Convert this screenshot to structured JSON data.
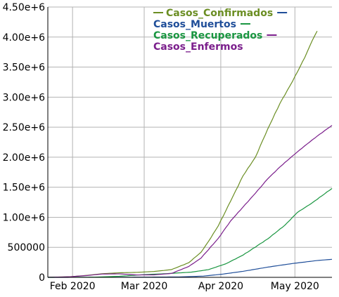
{
  "chart_data": {
    "type": "line",
    "title": "",
    "xlabel": "",
    "ylabel": "",
    "xlim": [
      "2020-01-22",
      "2020-05-16"
    ],
    "ylim": [
      0,
      4500000
    ],
    "x_ticks": [
      {
        "date": "2020-02-01",
        "label": "Feb 2020"
      },
      {
        "date": "2020-03-01",
        "label": "Mar 2020"
      },
      {
        "date": "2020-04-01",
        "label": "Apr 2020"
      },
      {
        "date": "2020-05-01",
        "label": "May 2020"
      }
    ],
    "y_ticks": [
      {
        "value": 0,
        "label": "0"
      },
      {
        "value": 500000,
        "label": "500000"
      },
      {
        "value": 1000000,
        "label": "1.00e+6"
      },
      {
        "value": 1500000,
        "label": "1.50e+6"
      },
      {
        "value": 2000000,
        "label": "2.00e+6"
      },
      {
        "value": 2500000,
        "label": "2.50e+6"
      },
      {
        "value": 3000000,
        "label": "3.00e+6"
      },
      {
        "value": 3500000,
        "label": "3.50e+6"
      },
      {
        "value": 4000000,
        "label": "4.00e+6"
      },
      {
        "value": 4500000,
        "label": "4.50e+6"
      }
    ],
    "grid": true,
    "legend_position": "top-right",
    "series": [
      {
        "name": "Casos_Confirmados",
        "color": "#6b8e23",
        "points": [
          [
            "2020-01-22",
            550
          ],
          [
            "2020-01-31",
            9900
          ],
          [
            "2020-02-07",
            34400
          ],
          [
            "2020-02-13",
            60300
          ],
          [
            "2020-02-20",
            76200
          ],
          [
            "2020-02-27",
            82700
          ],
          [
            "2020-03-05",
            97900
          ],
          [
            "2020-03-12",
            128300
          ],
          [
            "2020-03-19",
            242700
          ],
          [
            "2020-03-24",
            417900
          ],
          [
            "2020-03-27",
            596600
          ],
          [
            "2020-03-31",
            858300
          ],
          [
            "2020-04-05",
            1270000
          ],
          [
            "2020-04-10",
            1690000
          ],
          [
            "2020-04-15",
            2000000
          ],
          [
            "2020-04-20",
            2470000
          ],
          [
            "2020-04-25",
            2900000
          ],
          [
            "2020-04-30",
            3260000
          ],
          [
            "2020-05-05",
            3660000
          ],
          [
            "2020-05-08",
            3940000
          ],
          [
            "2020-05-10",
            4100000
          ]
        ]
      },
      {
        "name": "Casos_Muertos",
        "color": "#1f4e99",
        "points": [
          [
            "2020-01-22",
            17
          ],
          [
            "2020-02-10",
            900
          ],
          [
            "2020-03-01",
            3000
          ],
          [
            "2020-03-15",
            6500
          ],
          [
            "2020-03-25",
            21000
          ],
          [
            "2020-04-01",
            50000
          ],
          [
            "2020-04-10",
            100000
          ],
          [
            "2020-04-20",
            170000
          ],
          [
            "2020-04-30",
            230000
          ],
          [
            "2020-05-10",
            280000
          ],
          [
            "2020-05-16",
            300000
          ]
        ]
      },
      {
        "name": "Casos_Recuperados",
        "color": "#1a9641",
        "points": [
          [
            "2020-01-22",
            28
          ],
          [
            "2020-02-10",
            3000
          ],
          [
            "2020-02-20",
            18000
          ],
          [
            "2020-03-01",
            45000
          ],
          [
            "2020-03-10",
            62000
          ],
          [
            "2020-03-20",
            86000
          ],
          [
            "2020-03-27",
            128000
          ],
          [
            "2020-04-03",
            225000
          ],
          [
            "2020-04-10",
            370000
          ],
          [
            "2020-04-20",
            640000
          ],
          [
            "2020-04-27",
            870000
          ],
          [
            "2020-05-02",
            1080000
          ],
          [
            "2020-05-08",
            1240000
          ],
          [
            "2020-05-16",
            1480000
          ]
        ]
      },
      {
        "name": "Casos_Enfermos",
        "color": "#7b1f8c",
        "points": [
          [
            "2020-01-22",
            500
          ],
          [
            "2020-01-31",
            9400
          ],
          [
            "2020-02-07",
            31000
          ],
          [
            "2020-02-13",
            55000
          ],
          [
            "2020-02-20",
            58000
          ],
          [
            "2020-02-27",
            40000
          ],
          [
            "2020-03-05",
            41000
          ],
          [
            "2020-03-12",
            65000
          ],
          [
            "2020-03-19",
            180000
          ],
          [
            "2020-03-24",
            320000
          ],
          [
            "2020-03-31",
            650000
          ],
          [
            "2020-04-05",
            940000
          ],
          [
            "2020-04-10",
            1170000
          ],
          [
            "2020-04-15",
            1400000
          ],
          [
            "2020-04-20",
            1640000
          ],
          [
            "2020-04-25",
            1840000
          ],
          [
            "2020-04-30",
            2020000
          ],
          [
            "2020-05-05",
            2190000
          ],
          [
            "2020-05-10",
            2350000
          ],
          [
            "2020-05-16",
            2530000
          ]
        ]
      }
    ]
  }
}
